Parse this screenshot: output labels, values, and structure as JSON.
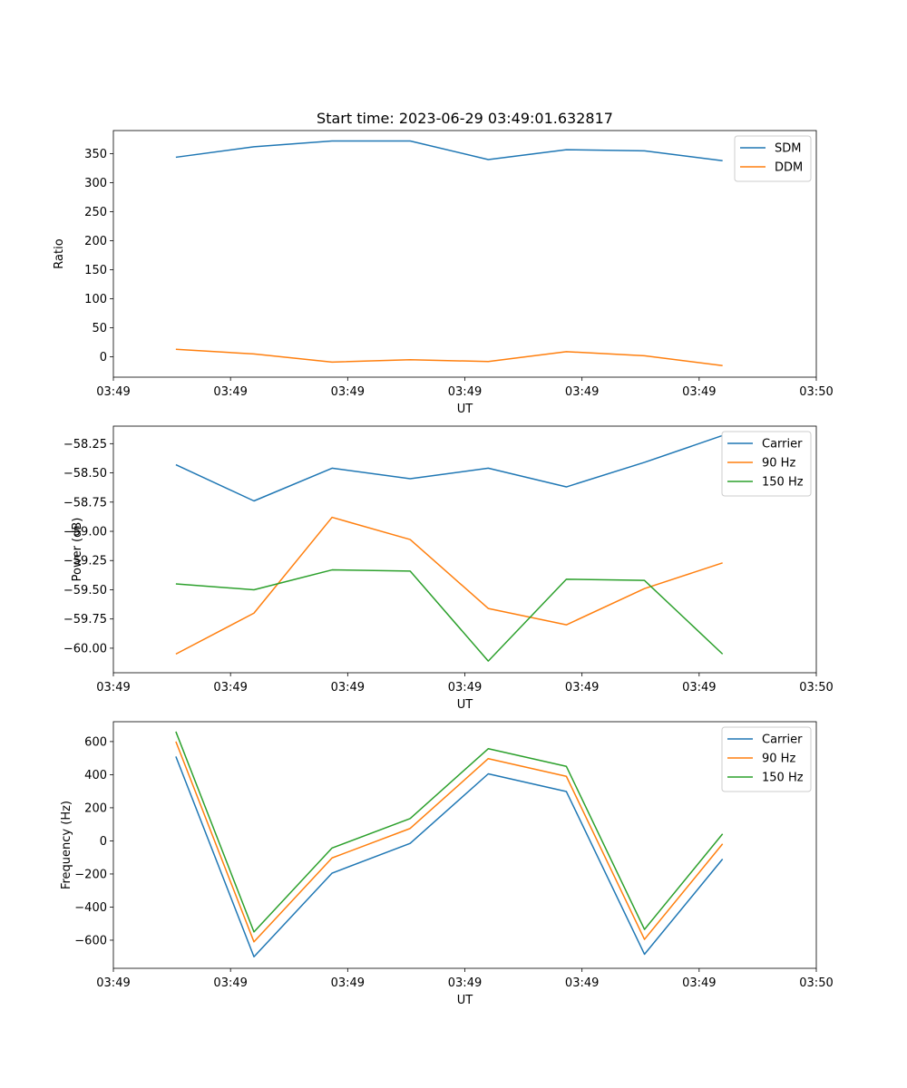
{
  "figure": {
    "title": "Start time: 2023-06-29 03:49:01.632817"
  },
  "chart_data": [
    {
      "type": "line",
      "title": "Start time: 2023-06-29 03:49:01.632817",
      "xlabel": "UT",
      "ylabel": "Ratio",
      "x": [
        1,
        2,
        3,
        4,
        5,
        6,
        7,
        8
      ],
      "xlim": [
        0.2,
        9.2
      ],
      "xticks": [
        0.2,
        1.7,
        3.2,
        4.7,
        6.2,
        7.7,
        9.2
      ],
      "xtick_labels": [
        "03:49",
        "03:49",
        "03:49",
        "03:49",
        "03:49",
        "03:49",
        "03:50"
      ],
      "ylim": [
        -35,
        390
      ],
      "yticks": [
        0,
        50,
        100,
        150,
        200,
        250,
        300,
        350
      ],
      "ytick_labels": [
        "0",
        "50",
        "100",
        "150",
        "200",
        "250",
        "300",
        "350"
      ],
      "legend": "top-right",
      "grid": false,
      "series": [
        {
          "name": "SDM",
          "color": "#1f77b4",
          "values": [
            344,
            362,
            372,
            372,
            340,
            357,
            355,
            338
          ]
        },
        {
          "name": "DDM",
          "color": "#ff7f0e",
          "values": [
            13,
            5,
            -9,
            -5,
            -8,
            9,
            2,
            -15
          ]
        }
      ]
    },
    {
      "type": "line",
      "xlabel": "UT",
      "ylabel": "Power (dB)",
      "x": [
        1,
        2,
        3,
        4,
        5,
        6,
        7,
        8
      ],
      "xlim": [
        0.2,
        9.2
      ],
      "xticks": [
        0.2,
        1.7,
        3.2,
        4.7,
        6.2,
        7.7,
        9.2
      ],
      "xtick_labels": [
        "03:49",
        "03:49",
        "03:49",
        "03:49",
        "03:49",
        "03:49",
        "03:50"
      ],
      "ylim": [
        -60.21,
        -58.1
      ],
      "yticks": [
        -58.25,
        -58.5,
        -58.75,
        -59.0,
        -59.25,
        -59.5,
        -59.75,
        -60.0
      ],
      "ytick_labels": [
        "−58.25",
        "−58.50",
        "−58.75",
        "−59.00",
        "−59.25",
        "−59.50",
        "−59.75",
        "−60.00"
      ],
      "legend": "top-right",
      "grid": false,
      "series": [
        {
          "name": "Carrier",
          "color": "#1f77b4",
          "values": [
            -58.43,
            -58.74,
            -58.46,
            -58.55,
            -58.46,
            -58.62,
            -58.41,
            -58.18
          ]
        },
        {
          "name": "90 Hz",
          "color": "#ff7f0e",
          "values": [
            -60.05,
            -59.7,
            -58.88,
            -59.07,
            -59.66,
            -59.8,
            -59.49,
            -59.27
          ]
        },
        {
          "name": "150 Hz",
          "color": "#2ca02c",
          "values": [
            -59.45,
            -59.5,
            -59.33,
            -59.34,
            -60.11,
            -59.41,
            -59.42,
            -60.05
          ]
        }
      ]
    },
    {
      "type": "line",
      "xlabel": "UT",
      "ylabel": "Frequency (Hz)",
      "x": [
        1,
        2,
        3,
        4,
        5,
        6,
        7,
        8
      ],
      "xlim": [
        0.2,
        9.2
      ],
      "xticks": [
        0.2,
        1.7,
        3.2,
        4.7,
        6.2,
        7.7,
        9.2
      ],
      "xtick_labels": [
        "03:49",
        "03:49",
        "03:49",
        "03:49",
        "03:49",
        "03:49",
        "03:50"
      ],
      "ylim": [
        -770,
        720
      ],
      "yticks": [
        600,
        400,
        200,
        0,
        -200,
        -400,
        -600
      ],
      "ytick_labels": [
        "600",
        "400",
        "200",
        "0",
        "−200",
        "−400",
        "−600"
      ],
      "legend": "top-right",
      "grid": false,
      "series": [
        {
          "name": "Carrier",
          "color": "#1f77b4",
          "values": [
            510,
            -700,
            -195,
            -15,
            405,
            298,
            -685,
            -110
          ]
        },
        {
          "name": "90 Hz",
          "color": "#ff7f0e",
          "values": [
            600,
            -610,
            -103,
            75,
            497,
            390,
            -595,
            -18
          ]
        },
        {
          "name": "150 Hz",
          "color": "#2ca02c",
          "values": [
            660,
            -550,
            -43,
            135,
            557,
            450,
            -535,
            42
          ]
        }
      ]
    }
  ]
}
